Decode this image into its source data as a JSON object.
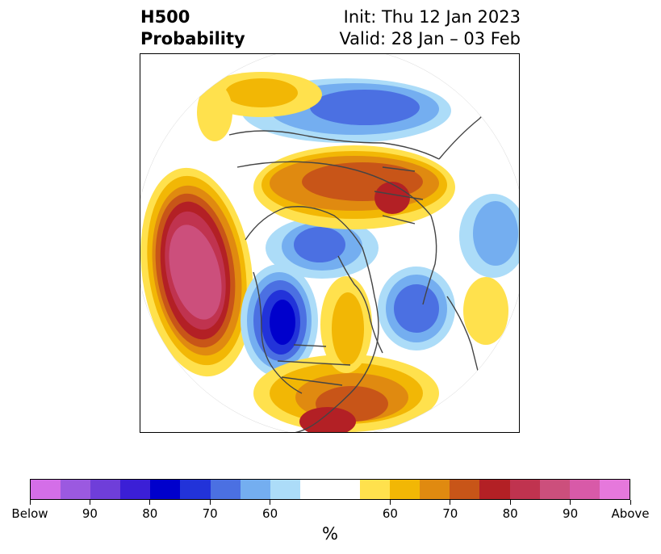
{
  "header": {
    "title_line1": "H500",
    "title_line2": "Probability",
    "init": "Init: Thu 12 Jan 2023",
    "valid": "Valid: 28 Jan – 03 Feb"
  },
  "colorbar": {
    "colors": [
      "#d46ee8",
      "#9b59e0",
      "#6f3ed9",
      "#3b1fd6",
      "#0000cc",
      "#2233d9",
      "#4b70e2",
      "#74aef0",
      "#acdcf8",
      "#ffffff",
      "#ffffff",
      "#ffe14d",
      "#f2b705",
      "#e08a10",
      "#c85518",
      "#b32025",
      "#c0334f",
      "#cc4f7c",
      "#d85aa8",
      "#e678dc"
    ],
    "tick_labels": [
      "Below",
      "90",
      "80",
      "70",
      "60",
      "60",
      "70",
      "80",
      "90",
      "Above"
    ],
    "unit": "%"
  },
  "map": {
    "projection": "north polar stereographic",
    "feature_colors": {
      "below_60": "#acdcf8",
      "below_70": "#74aef0",
      "below_80": "#4b70e2",
      "below_90": "#0000cc",
      "above_60": "#ffe14d",
      "above_70": "#e08a10",
      "above_80": "#b32025",
      "above_90": "#cc4f7c"
    }
  }
}
